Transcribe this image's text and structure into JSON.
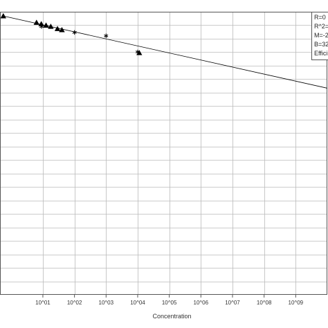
{
  "chart_data": {
    "type": "scatter",
    "title": "",
    "xlabel": "Concentration",
    "ylabel": "",
    "x_scale": "log10",
    "xlim": [
      1,
      10000000000.0
    ],
    "x_tick_labels": [
      "10^01",
      "10^02",
      "10^03",
      "10^04",
      "10^05",
      "10^06",
      "10^07",
      "10^08",
      "10^09"
    ],
    "grid": true,
    "legend_position": "top-right",
    "legend_lines": [
      "R=0",
      "R^2=",
      "M=-2",
      "B=32",
      "Effici"
    ],
    "series": [
      {
        "marker": "triangle",
        "color": "#000000",
        "points": [
          {
            "x": 0.56,
            "rel_y": 0.985
          },
          {
            "x": 6.3,
            "rel_y": 0.962
          },
          {
            "x": 8.9,
            "rel_y": 0.957
          },
          {
            "x": 12.6,
            "rel_y": 0.952
          },
          {
            "x": 17.8,
            "rel_y": 0.948
          },
          {
            "x": 29,
            "rel_y": 0.94
          },
          {
            "x": 40,
            "rel_y": 0.936
          },
          {
            "x": 11220,
            "rel_y": 0.855
          }
        ]
      },
      {
        "marker": "asterisk",
        "color": "#000000",
        "points": [
          {
            "x": 9.1,
            "rel_y": 0.948
          },
          {
            "x": 100,
            "rel_y": 0.927
          },
          {
            "x": 1000,
            "rel_y": 0.915
          },
          {
            "x": 10000,
            "rel_y": 0.858
          }
        ]
      }
    ],
    "fit_line": {
      "color": "#000000",
      "from": {
        "x": 0.56,
        "rel_y": 0.985
      },
      "to": {
        "x": 10000000000.0,
        "rel_y": 0.73
      }
    }
  }
}
